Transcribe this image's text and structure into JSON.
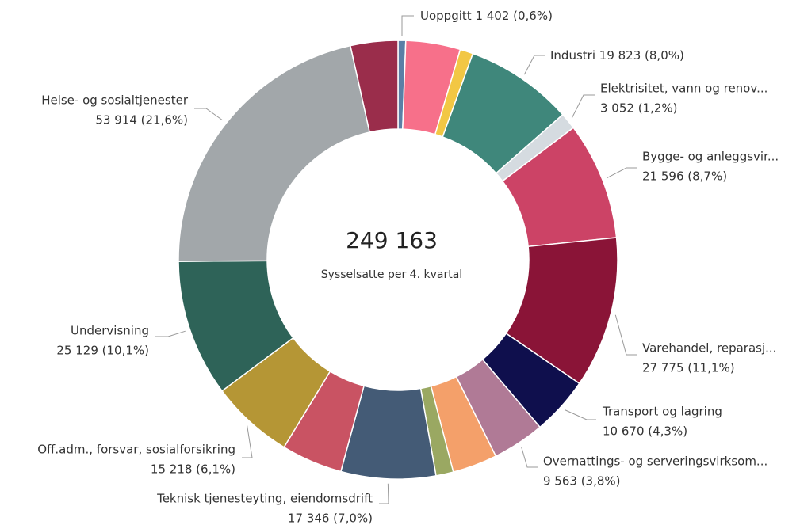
{
  "chart_data": {
    "type": "donut",
    "center_value": {
      "value": 249163,
      "label": "249 163"
    },
    "center_label": "Sysselsatte per 4. kvartal",
    "categories": [
      "Uoppgitt",
      null,
      null,
      "Industri",
      "Elektrisitet, vann og renov...",
      "Bygge- og anleggsvir...",
      "Varehandel, reparasj...",
      "Transport og lagring",
      "Overnattings- og serveringsvirksom...",
      null,
      null,
      "Teknisk tjenesteyting, eiendomsdrift",
      null,
      "Off.adm., forsvar, sosialforsikring",
      "Undervisning",
      "Helse- og sosialtjenester",
      null
    ],
    "values": [
      1402,
      10000,
      2400,
      19823,
      3052,
      21596,
      27775,
      10670,
      9563,
      8200,
      3200,
      17346,
      11200,
      15218,
      25129,
      53914,
      8675
    ],
    "value_labels": [
      "1 402 (0,6%)",
      null,
      null,
      "19 823 (8,0%)",
      "3 052 (1,2%)",
      "21 596 (8,7%)",
      "27 775 (11,1%)",
      "10 670 (4,3%)",
      "9 563 (3,8%)",
      null,
      null,
      "17 346 (7,0%)",
      null,
      "15 218 (6,1%)",
      "25 129 (10,1%)",
      "53 914 (21,6%)",
      null
    ],
    "colors": [
      "#5b7fa6",
      "#f7708a",
      "#f2c744",
      "#3f877b",
      "#d5dbe0",
      "#cc4366",
      "#8a1437",
      "#0f0f4d",
      "#b07a96",
      "#f4a06a",
      "#9aa862",
      "#445b76",
      "#c95363",
      "#b59635",
      "#2e6358",
      "#a2a7aa",
      "#9a2d4b"
    ]
  }
}
